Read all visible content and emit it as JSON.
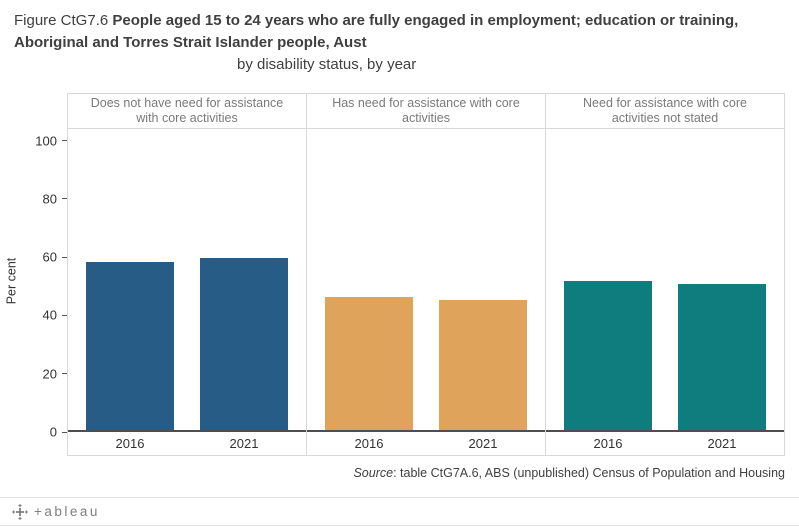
{
  "title": {
    "prefix": "Figure CtG7.6 ",
    "main": "People aged 15 to 24 years who are fully engaged in employment; education or training, Aboriginal and Torres Strait Islander people, Aust",
    "subtitle": "by disability status, by year"
  },
  "chart_data": {
    "type": "bar",
    "title": "Figure CtG7.6 People aged 15 to 24 years who are fully engaged in employment; education or training, Aboriginal and Torres Strait Islander people, Aust by disability status, by year",
    "ylabel": "Per cent",
    "ylim": [
      0,
      104
    ],
    "yticks": [
      0,
      20,
      40,
      60,
      80,
      100
    ],
    "categories": [
      "2016",
      "2021"
    ],
    "grid": false,
    "legend": "none",
    "panels": [
      {
        "header": "Does not have need for assistance with core activities",
        "color": "#265c85",
        "values": [
          58,
          59.5
        ]
      },
      {
        "header": "Has need for assistance with core activities",
        "color": "#dfa35c",
        "values": [
          46,
          45
        ]
      },
      {
        "header": "Need for assistance with core activities not stated",
        "color": "#0f7d7d",
        "values": [
          51.5,
          50.5
        ]
      }
    ]
  },
  "source": {
    "label_italic": "Source",
    "text": ": table CtG7A.6, ABS (unpublished) Census of Population and Housing"
  },
  "footer": {
    "wordmark": "+ableau"
  }
}
